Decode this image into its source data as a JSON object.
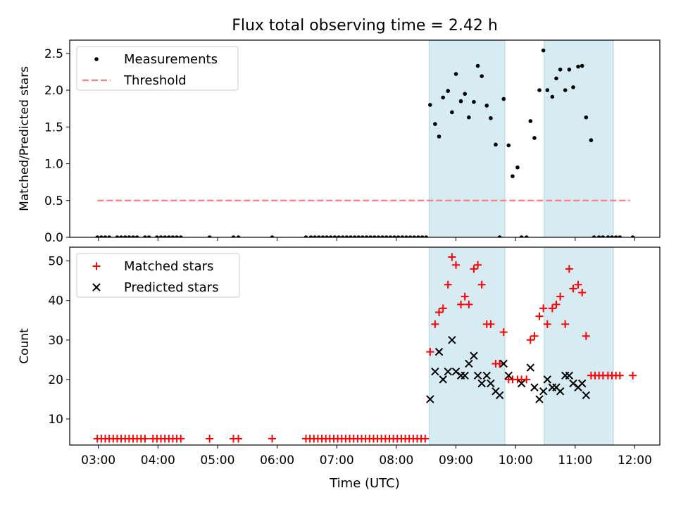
{
  "figure": {
    "title": "Flux total observing time = 2.42 h",
    "xlabel": "Time (UTC)",
    "x_ticks": [
      "03:00",
      "04:00",
      "05:00",
      "06:00",
      "07:00",
      "08:00",
      "09:00",
      "10:00",
      "11:00",
      "12:00"
    ],
    "x_range_hours": [
      2.52,
      12.42
    ],
    "shaded_intervals_hours": [
      [
        8.55,
        9.82
      ],
      [
        10.48,
        11.64
      ]
    ],
    "shade_color": "#add8e6"
  },
  "chart_data": [
    {
      "type": "scatter",
      "ylabel": "Matched/Predicted stars",
      "ylim": [
        0,
        2.68
      ],
      "y_ticks": [
        0.0,
        0.5,
        1.0,
        1.5,
        2.0,
        2.5
      ],
      "grid": false,
      "legend": "top-left",
      "series": [
        {
          "name": "Measurements",
          "marker": "dot",
          "color": "#000000",
          "points": [
            [
              "02:59",
              0
            ],
            [
              "03:03",
              0
            ],
            [
              "03:07",
              0
            ],
            [
              "03:11",
              0
            ],
            [
              "03:19",
              0
            ],
            [
              "03:23",
              0
            ],
            [
              "03:27",
              0
            ],
            [
              "03:31",
              0
            ],
            [
              "03:35",
              0
            ],
            [
              "03:39",
              0
            ],
            [
              "03:47",
              0
            ],
            [
              "03:51",
              0
            ],
            [
              "03:59",
              0
            ],
            [
              "04:03",
              0
            ],
            [
              "04:07",
              0
            ],
            [
              "04:11",
              0
            ],
            [
              "04:15",
              0
            ],
            [
              "04:19",
              0
            ],
            [
              "04:23",
              0
            ],
            [
              "04:52",
              0
            ],
            [
              "05:16",
              0
            ],
            [
              "05:21",
              0
            ],
            [
              "05:55",
              0
            ],
            [
              "06:29",
              0
            ],
            [
              "06:34",
              0
            ],
            [
              "06:38",
              0
            ],
            [
              "06:42",
              0
            ],
            [
              "06:46",
              0
            ],
            [
              "06:50",
              0
            ],
            [
              "06:54",
              0
            ],
            [
              "06:58",
              0
            ],
            [
              "07:02",
              0
            ],
            [
              "07:06",
              0
            ],
            [
              "07:10",
              0
            ],
            [
              "07:14",
              0
            ],
            [
              "07:18",
              0
            ],
            [
              "07:22",
              0
            ],
            [
              "07:26",
              0
            ],
            [
              "07:30",
              0
            ],
            [
              "07:34",
              0
            ],
            [
              "07:38",
              0
            ],
            [
              "07:42",
              0
            ],
            [
              "07:46",
              0
            ],
            [
              "07:50",
              0
            ],
            [
              "07:54",
              0
            ],
            [
              "07:58",
              0
            ],
            [
              "08:02",
              0
            ],
            [
              "08:06",
              0
            ],
            [
              "08:10",
              0
            ],
            [
              "08:14",
              0
            ],
            [
              "08:18",
              0
            ],
            [
              "08:22",
              0
            ],
            [
              "08:26",
              0
            ],
            [
              "08:30",
              0
            ],
            [
              "08:34",
              1.8
            ],
            [
              "08:39",
              1.54
            ],
            [
              "08:43",
              1.37
            ],
            [
              "08:47",
              1.9
            ],
            [
              "08:52",
              1.99
            ],
            [
              "08:56",
              1.7
            ],
            [
              "09:00",
              2.22
            ],
            [
              "09:05",
              1.85
            ],
            [
              "09:09",
              1.95
            ],
            [
              "09:13",
              1.63
            ],
            [
              "09:18",
              1.84
            ],
            [
              "09:22",
              2.33
            ],
            [
              "09:26",
              2.19
            ],
            [
              "09:31",
              1.79
            ],
            [
              "09:35",
              1.62
            ],
            [
              "09:40",
              1.26
            ],
            [
              "09:44",
              0
            ],
            [
              "09:48",
              1.88
            ],
            [
              "09:53",
              1.25
            ],
            [
              "09:57",
              0.83
            ],
            [
              "10:02",
              0.95
            ],
            [
              "10:06",
              0
            ],
            [
              "10:11",
              0
            ],
            [
              "10:15",
              1.58
            ],
            [
              "10:19",
              1.35
            ],
            [
              "10:24",
              2.0
            ],
            [
              "10:28",
              2.54
            ],
            [
              "10:32",
              2.0
            ],
            [
              "10:37",
              1.91
            ],
            [
              "10:41",
              2.16
            ],
            [
              "10:45",
              2.28
            ],
            [
              "10:50",
              2.0
            ],
            [
              "10:54",
              2.28
            ],
            [
              "10:58",
              2.04
            ],
            [
              "11:03",
              2.32
            ],
            [
              "11:07",
              2.33
            ],
            [
              "11:11",
              1.63
            ],
            [
              "11:16",
              1.32
            ],
            [
              "11:19",
              0
            ],
            [
              "11:24",
              0
            ],
            [
              "11:28",
              0
            ],
            [
              "11:33",
              0
            ],
            [
              "11:37",
              0
            ],
            [
              "11:41",
              0
            ],
            [
              "11:45",
              0
            ],
            [
              "11:58",
              0
            ]
          ]
        },
        {
          "name": "Threshold",
          "marker": "dashed-line",
          "color": "#ff7f7f",
          "points": [
            [
              "02:59",
              0.5
            ],
            [
              "11:55",
              0.5
            ]
          ]
        }
      ]
    },
    {
      "type": "scatter",
      "ylabel": "Count",
      "ylim": [
        3.4,
        53.5
      ],
      "y_ticks": [
        10,
        20,
        30,
        40,
        50
      ],
      "grid": false,
      "legend": "top-left",
      "series": [
        {
          "name": "Matched stars",
          "marker": "plus",
          "color": "#ff0000",
          "points": [
            [
              "02:59",
              5
            ],
            [
              "03:03",
              5
            ],
            [
              "03:07",
              5
            ],
            [
              "03:11",
              5
            ],
            [
              "03:15",
              5
            ],
            [
              "03:19",
              5
            ],
            [
              "03:23",
              5
            ],
            [
              "03:27",
              5
            ],
            [
              "03:31",
              5
            ],
            [
              "03:35",
              5
            ],
            [
              "03:39",
              5
            ],
            [
              "03:43",
              5
            ],
            [
              "03:47",
              5
            ],
            [
              "03:55",
              5
            ],
            [
              "03:59",
              5
            ],
            [
              "04:03",
              5
            ],
            [
              "04:07",
              5
            ],
            [
              "04:11",
              5
            ],
            [
              "04:15",
              5
            ],
            [
              "04:19",
              5
            ],
            [
              "04:23",
              5
            ],
            [
              "04:52",
              5
            ],
            [
              "05:16",
              5
            ],
            [
              "05:21",
              5
            ],
            [
              "05:55",
              5
            ],
            [
              "06:29",
              5
            ],
            [
              "06:33",
              5
            ],
            [
              "06:37",
              5
            ],
            [
              "06:41",
              5
            ],
            [
              "06:45",
              5
            ],
            [
              "06:49",
              5
            ],
            [
              "06:53",
              5
            ],
            [
              "06:57",
              5
            ],
            [
              "07:01",
              5
            ],
            [
              "07:05",
              5
            ],
            [
              "07:09",
              5
            ],
            [
              "07:13",
              5
            ],
            [
              "07:17",
              5
            ],
            [
              "07:21",
              5
            ],
            [
              "07:25",
              5
            ],
            [
              "07:29",
              5
            ],
            [
              "07:33",
              5
            ],
            [
              "07:37",
              5
            ],
            [
              "07:41",
              5
            ],
            [
              "07:45",
              5
            ],
            [
              "07:49",
              5
            ],
            [
              "07:53",
              5
            ],
            [
              "07:57",
              5
            ],
            [
              "08:01",
              5
            ],
            [
              "08:05",
              5
            ],
            [
              "08:09",
              5
            ],
            [
              "08:13",
              5
            ],
            [
              "08:17",
              5
            ],
            [
              "08:21",
              5
            ],
            [
              "08:25",
              5
            ],
            [
              "08:29",
              5
            ],
            [
              "08:34",
              27
            ],
            [
              "08:39",
              34
            ],
            [
              "08:43",
              37
            ],
            [
              "08:47",
              38
            ],
            [
              "08:52",
              44
            ],
            [
              "08:56",
              51
            ],
            [
              "09:00",
              49
            ],
            [
              "09:05",
              39
            ],
            [
              "09:09",
              41
            ],
            [
              "09:13",
              39
            ],
            [
              "09:18",
              48
            ],
            [
              "09:22",
              49
            ],
            [
              "09:26",
              44
            ],
            [
              "09:31",
              34
            ],
            [
              "09:35",
              34
            ],
            [
              "09:40",
              24
            ],
            [
              "09:44",
              24
            ],
            [
              "09:48",
              32
            ],
            [
              "09:53",
              20
            ],
            [
              "09:57",
              20
            ],
            [
              "10:02",
              20
            ],
            [
              "10:06",
              20
            ],
            [
              "10:11",
              20
            ],
            [
              "10:15",
              30
            ],
            [
              "10:19",
              31
            ],
            [
              "10:24",
              36
            ],
            [
              "10:28",
              38
            ],
            [
              "10:32",
              34
            ],
            [
              "10:37",
              38
            ],
            [
              "10:41",
              39
            ],
            [
              "10:45",
              41
            ],
            [
              "10:50",
              34
            ],
            [
              "10:54",
              48
            ],
            [
              "10:58",
              43
            ],
            [
              "11:03",
              44
            ],
            [
              "11:07",
              42
            ],
            [
              "11:11",
              31
            ],
            [
              "11:16",
              21
            ],
            [
              "11:20",
              21
            ],
            [
              "11:24",
              21
            ],
            [
              "11:28",
              21
            ],
            [
              "11:33",
              21
            ],
            [
              "11:37",
              21
            ],
            [
              "11:41",
              21
            ],
            [
              "11:45",
              21
            ],
            [
              "11:58",
              21
            ]
          ]
        },
        {
          "name": "Predicted stars",
          "marker": "x",
          "color": "#000000",
          "points": [
            [
              "08:34",
              15
            ],
            [
              "08:39",
              22
            ],
            [
              "08:43",
              27
            ],
            [
              "08:47",
              20
            ],
            [
              "08:52",
              22
            ],
            [
              "08:56",
              30
            ],
            [
              "09:00",
              22
            ],
            [
              "09:05",
              21
            ],
            [
              "09:09",
              21
            ],
            [
              "09:13",
              24
            ],
            [
              "09:18",
              26
            ],
            [
              "09:22",
              21
            ],
            [
              "09:26",
              19
            ],
            [
              "09:31",
              21
            ],
            [
              "09:35",
              19
            ],
            [
              "09:40",
              17
            ],
            [
              "09:44",
              16
            ],
            [
              "09:48",
              24
            ],
            [
              "09:53",
              21
            ],
            [
              "10:06",
              19
            ],
            [
              "10:15",
              23
            ],
            [
              "10:19",
              18
            ],
            [
              "10:24",
              15
            ],
            [
              "10:28",
              17
            ],
            [
              "10:32",
              20
            ],
            [
              "10:37",
              18
            ],
            [
              "10:41",
              18
            ],
            [
              "10:45",
              17
            ],
            [
              "10:50",
              21
            ],
            [
              "10:54",
              21
            ],
            [
              "10:58",
              19
            ],
            [
              "11:03",
              18
            ],
            [
              "11:07",
              19
            ],
            [
              "11:11",
              16
            ]
          ]
        }
      ]
    }
  ]
}
